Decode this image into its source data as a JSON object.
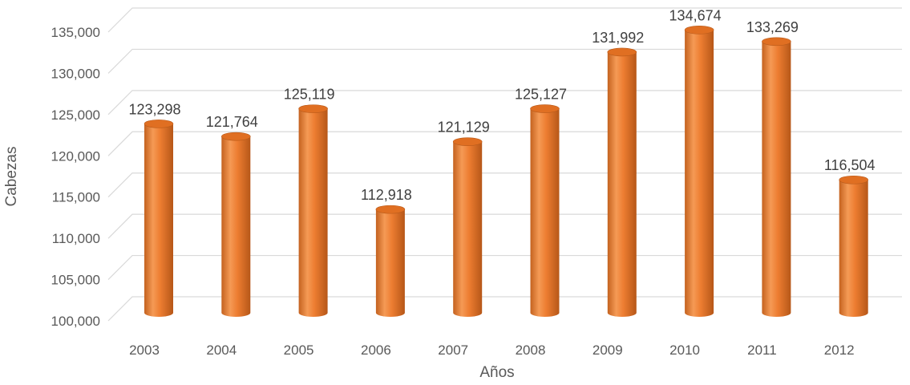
{
  "chart_data": {
    "type": "bar",
    "style": "3d-cylinder",
    "categories": [
      "2003",
      "2004",
      "2005",
      "2006",
      "2007",
      "2008",
      "2009",
      "2010",
      "2011",
      "2012"
    ],
    "values": [
      123298,
      121764,
      125119,
      112918,
      121129,
      125127,
      131992,
      134674,
      133269,
      116504
    ],
    "data_labels": [
      "123,298",
      "121,764",
      "125,119",
      "112,918",
      "121,129",
      "125,127",
      "131,992",
      "134,674",
      "133,269",
      "116,504"
    ],
    "xlabel": "Años",
    "ylabel": "Cabezas",
    "ylim": [
      100000,
      135000
    ],
    "yticks": [
      100000,
      105000,
      110000,
      115000,
      120000,
      125000,
      130000,
      135000
    ],
    "ytick_labels": [
      "100,000",
      "105,000",
      "110,000",
      "115,000",
      "120,000",
      "125,000",
      "130,000",
      "135,000"
    ],
    "grid": true,
    "legend": "none",
    "colors": {
      "bar": "#ed7d31",
      "bar_light": "#f8a868",
      "bar_dark": "#b85a1a",
      "top": "#e06f22"
    }
  }
}
